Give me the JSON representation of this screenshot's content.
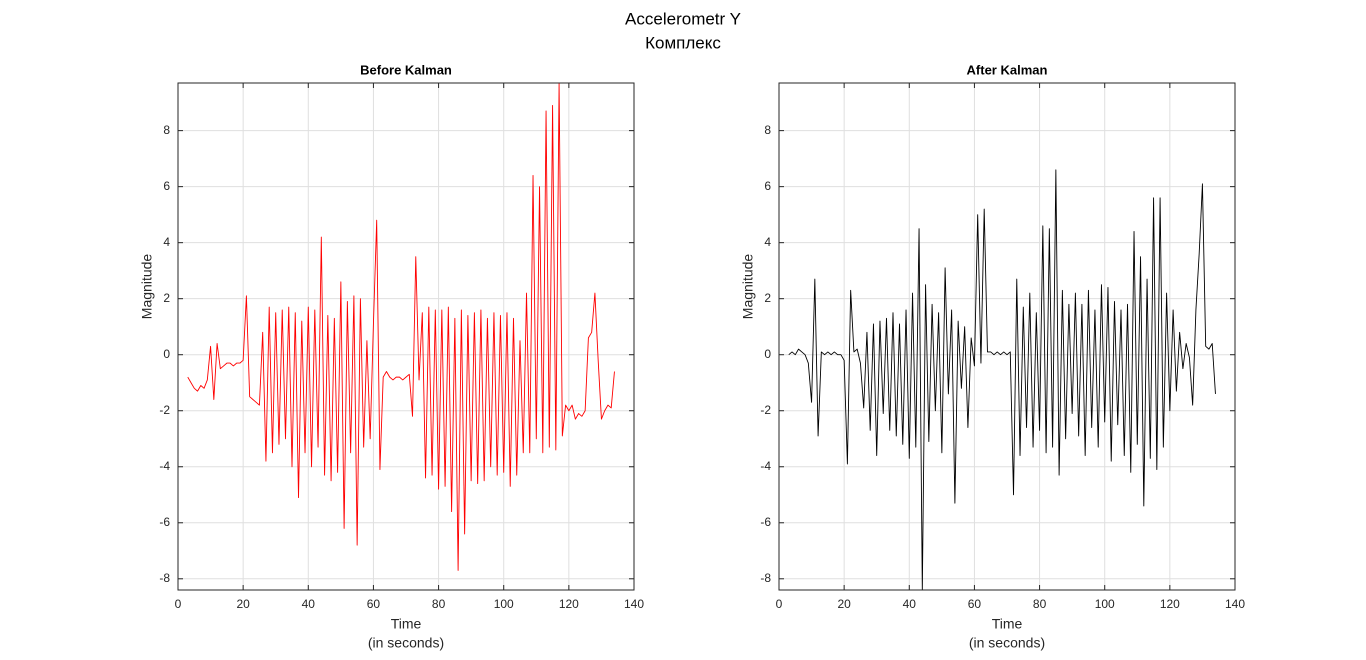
{
  "title": "Accelerometr Y",
  "subtitle": "Комплекс",
  "chart_data": [
    {
      "type": "line",
      "title": "Before Kalman",
      "xlabel": [
        "Time",
        "(in seconds)"
      ],
      "ylabel": "Magnitude",
      "color": "#ff0000",
      "grid": true,
      "xlim": [
        0,
        140
      ],
      "ylim": [
        -8.4,
        9.7
      ],
      "xticks": [
        0,
        20,
        40,
        60,
        80,
        100,
        120,
        140
      ],
      "yticks": [
        -8,
        -6,
        -4,
        -2,
        0,
        2,
        4,
        6,
        8
      ],
      "x": [
        3,
        4,
        5,
        6,
        7,
        8,
        9,
        10,
        11,
        12,
        13,
        14,
        15,
        16,
        17,
        18,
        19,
        20,
        21,
        22,
        23,
        24,
        25,
        26,
        27,
        28,
        29,
        30,
        31,
        32,
        33,
        34,
        35,
        36,
        37,
        38,
        39,
        40,
        41,
        42,
        43,
        44,
        45,
        46,
        47,
        48,
        49,
        50,
        51,
        52,
        53,
        54,
        55,
        56,
        57,
        58,
        59,
        60,
        61,
        62,
        63,
        64,
        65,
        66,
        67,
        68,
        69,
        70,
        71,
        72,
        73,
        74,
        75,
        76,
        77,
        78,
        79,
        80,
        81,
        82,
        83,
        84,
        85,
        86,
        87,
        88,
        89,
        90,
        91,
        92,
        93,
        94,
        95,
        96,
        97,
        98,
        99,
        100,
        101,
        102,
        103,
        104,
        105,
        106,
        107,
        108,
        109,
        110,
        111,
        112,
        113,
        114,
        115,
        116,
        117,
        118,
        119,
        120,
        121,
        122,
        123,
        124,
        125,
        126,
        127,
        128,
        129,
        130,
        131,
        132,
        133,
        134
      ],
      "values": [
        -0.8,
        -1,
        -1.2,
        -1.3,
        -1.1,
        -1.2,
        -0.9,
        0.3,
        -1.6,
        0.4,
        -0.5,
        -0.4,
        -0.3,
        -0.3,
        -0.4,
        -0.3,
        -0.3,
        -0.2,
        2.1,
        -1.5,
        -1.6,
        -1.7,
        -1.8,
        0.8,
        -3.8,
        1.7,
        -3.5,
        1.5,
        -3.2,
        1.6,
        -3,
        1.7,
        -4,
        1.5,
        -5.1,
        1.2,
        -3.5,
        1.7,
        -4,
        1.6,
        -3.3,
        4.2,
        -4.3,
        1.4,
        -4.5,
        1.3,
        -4.2,
        2.6,
        -6.2,
        1.9,
        -3.5,
        2.1,
        -6.8,
        2.0,
        -3.3,
        0.5,
        -3,
        1.1,
        4.8,
        -4.1,
        -0.8,
        -0.6,
        -0.8,
        -0.9,
        -0.8,
        -0.8,
        -0.9,
        -0.8,
        -0.7,
        -2.2,
        3.5,
        -0.9,
        1.5,
        -4.4,
        1.7,
        -4.3,
        1.6,
        -4.8,
        1.6,
        -4.7,
        1.7,
        -5.6,
        1.3,
        -7.7,
        1.6,
        -6.4,
        1.4,
        -4.5,
        1.5,
        -4.6,
        1.6,
        -4.5,
        1.3,
        -4.0,
        1.5,
        -4.3,
        1.4,
        -4.2,
        1.5,
        -4.7,
        1.3,
        -4.3,
        0.5,
        -3.5,
        2.2,
        -3.5,
        6.4,
        -3.0,
        6.0,
        -3.5,
        8.7,
        -3.3,
        8.9,
        -3.4,
        9.7,
        -2.9,
        -1.8,
        -2.0,
        -1.8,
        -2.3,
        -2.1,
        -2.2,
        -2.0,
        0.6,
        0.8,
        2.2,
        -0.2,
        -2.3,
        -2.0,
        -1.8,
        -1.9,
        -0.6
      ]
    },
    {
      "type": "line",
      "title": "After Kalman",
      "xlabel": [
        "Time",
        "(in seconds)"
      ],
      "ylabel": "Magnitude",
      "color": "#000000",
      "grid": true,
      "xlim": [
        0,
        140
      ],
      "ylim": [
        -8.4,
        9.7
      ],
      "xticks": [
        0,
        20,
        40,
        60,
        80,
        100,
        120,
        140
      ],
      "yticks": [
        -8,
        -6,
        -4,
        -2,
        0,
        2,
        4,
        6,
        8
      ],
      "x": [
        3,
        4,
        5,
        6,
        7,
        8,
        9,
        10,
        11,
        12,
        13,
        14,
        15,
        16,
        17,
        18,
        19,
        20,
        21,
        22,
        23,
        24,
        25,
        26,
        27,
        28,
        29,
        30,
        31,
        32,
        33,
        34,
        35,
        36,
        37,
        38,
        39,
        40,
        41,
        42,
        43,
        44,
        45,
        46,
        47,
        48,
        49,
        50,
        51,
        52,
        53,
        54,
        55,
        56,
        57,
        58,
        59,
        60,
        61,
        62,
        63,
        64,
        65,
        66,
        67,
        68,
        69,
        70,
        71,
        72,
        73,
        74,
        75,
        76,
        77,
        78,
        79,
        80,
        81,
        82,
        83,
        84,
        85,
        86,
        87,
        88,
        89,
        90,
        91,
        92,
        93,
        94,
        95,
        96,
        97,
        98,
        99,
        100,
        101,
        102,
        103,
        104,
        105,
        106,
        107,
        108,
        109,
        110,
        111,
        112,
        113,
        114,
        115,
        116,
        117,
        118,
        119,
        120,
        121,
        122,
        123,
        124,
        125,
        126,
        127,
        128,
        129,
        130,
        131,
        132,
        133,
        134
      ],
      "values": [
        0,
        0.1,
        0,
        0.2,
        0.1,
        0,
        -0.3,
        -1.7,
        2.7,
        -2.9,
        0.1,
        0,
        0.1,
        0,
        0.1,
        0,
        0,
        -0.2,
        -3.9,
        2.3,
        0.1,
        0.2,
        -0.3,
        -1.9,
        0.8,
        -2.7,
        1.1,
        -3.6,
        1.2,
        -2.1,
        1.3,
        -2.7,
        1.5,
        -2.9,
        1.1,
        -3.2,
        1.6,
        -3.7,
        2.2,
        -3.3,
        4.5,
        -8.4,
        2.5,
        -3.1,
        1.8,
        -2.0,
        1.5,
        -3.5,
        3.1,
        -1.4,
        1.6,
        -5.3,
        1.2,
        -1.2,
        1.0,
        -2.6,
        0.6,
        -0.4,
        5.0,
        -0.3,
        5.2,
        0.1,
        0.1,
        0.0,
        0.1,
        0,
        0.1,
        0,
        0.1,
        -5.0,
        2.7,
        -3.6,
        1.7,
        -2.6,
        2.2,
        -3.3,
        1.5,
        -2.7,
        4.6,
        -3.5,
        4.5,
        -3.3,
        6.6,
        -4.3,
        2.3,
        -3.0,
        1.8,
        -2.1,
        2.2,
        -2.9,
        1.8,
        -3.6,
        2.3,
        -2.6,
        1.6,
        -3.3,
        2.5,
        -2.4,
        2.4,
        -3.8,
        1.9,
        -2.5,
        1.6,
        -3.6,
        1.8,
        -4.2,
        4.4,
        -3.2,
        3.5,
        -5.4,
        2.7,
        -3.7,
        5.6,
        -4.1,
        5.6,
        -3.3,
        2.2,
        -2.0,
        1.6,
        -1.3,
        0.8,
        -0.5,
        0.4,
        -0.1,
        -1.8,
        1.6,
        3.6,
        6.1,
        0.3,
        0.2,
        0.4,
        -1.4
      ]
    }
  ]
}
